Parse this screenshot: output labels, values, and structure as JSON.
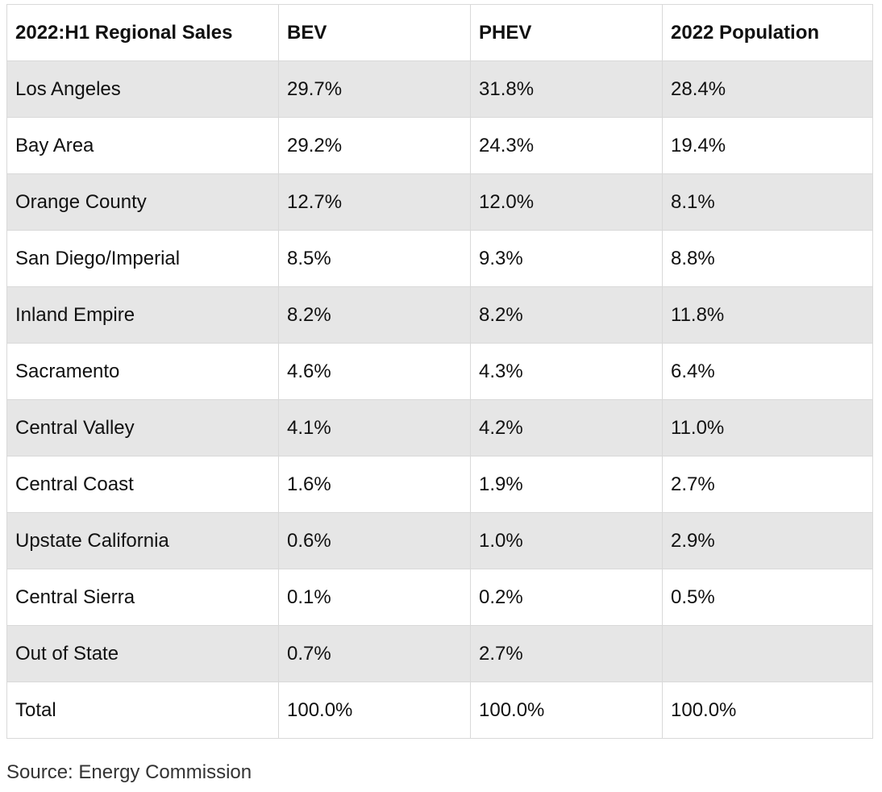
{
  "table": {
    "headers": [
      "2022:H1 Regional Sales",
      "BEV",
      "PHEV",
      "2022 Population"
    ],
    "rows": [
      [
        "Los Angeles",
        "29.7%",
        "31.8%",
        "28.4%"
      ],
      [
        "Bay Area",
        "29.2%",
        "24.3%",
        "19.4%"
      ],
      [
        "Orange County",
        "12.7%",
        "12.0%",
        "8.1%"
      ],
      [
        "San Diego/Imperial",
        "8.5%",
        "9.3%",
        "8.8%"
      ],
      [
        "Inland Empire",
        "8.2%",
        "8.2%",
        "11.8%"
      ],
      [
        "Sacramento",
        "4.6%",
        "4.3%",
        "6.4%"
      ],
      [
        "Central Valley",
        "4.1%",
        "4.2%",
        "11.0%"
      ],
      [
        "Central Coast",
        "1.6%",
        "1.9%",
        "2.7%"
      ],
      [
        "Upstate California",
        "0.6%",
        "1.0%",
        "2.9%"
      ],
      [
        "Central Sierra",
        "0.1%",
        "0.2%",
        "0.5%"
      ],
      [
        "Out of State",
        "0.7%",
        "2.7%",
        ""
      ],
      [
        "Total",
        "100.0%",
        "100.0%",
        "100.0%"
      ]
    ]
  },
  "source": "Source: Energy Commission",
  "colors": {
    "shaded_row": "#e6e6e6",
    "plain_row": "#ffffff",
    "border": "#d9d9d9"
  }
}
